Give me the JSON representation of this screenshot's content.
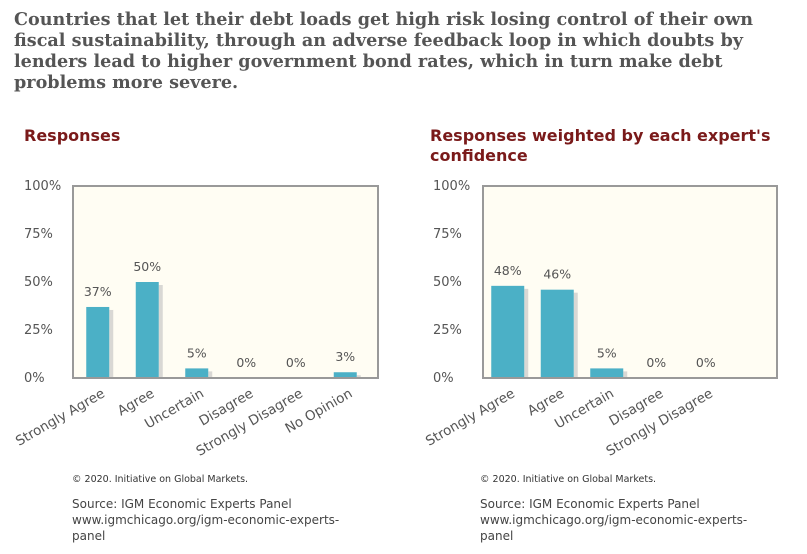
{
  "statement": "Countries that let their debt loads get high risk losing control of their own fiscal sustainability, through an adverse feedback loop in which doubts by lenders lead to higher government bond rates, which in turn make debt problems more severe.",
  "colors": {
    "bar": "#4bb0c6",
    "title": "#7a1a1a",
    "plot_background": "#fffdf3",
    "frame": "#999999"
  },
  "panels": [
    {
      "title": "Responses",
      "copyright": "© 2020. Initiative on Global Markets.",
      "source_label": "Source: IGM Economic Experts Panel",
      "source_url_line1": "www.igmchicago.org/igm-economic-experts-",
      "source_url_line2": "panel"
    },
    {
      "title": "Responses weighted by each expert's confidence",
      "copyright": "© 2020. Initiative on Global Markets.",
      "source_label": "Source: IGM Economic Experts Panel",
      "source_url_line1": "www.igmchicago.org/igm-economic-experts-",
      "source_url_line2": "panel"
    }
  ],
  "chart_data": [
    {
      "type": "bar",
      "title": "Responses",
      "categories": [
        "Strongly Agree",
        "Agree",
        "Uncertain",
        "Disagree",
        "Strongly Disagree",
        "No Opinion"
      ],
      "values": [
        37,
        50,
        5,
        0,
        0,
        3
      ],
      "data_labels": [
        "37%",
        "50%",
        "5%",
        "0%",
        "0%",
        "3%"
      ],
      "ylim": [
        0,
        100
      ],
      "yticks": [
        0,
        25,
        50,
        75,
        100
      ],
      "ytick_labels": [
        "0%",
        "25%",
        "50%",
        "75%",
        "100%"
      ],
      "xlabel": "",
      "ylabel": "",
      "grid": false,
      "legend": "none"
    },
    {
      "type": "bar",
      "title": "Responses weighted by each expert's confidence",
      "categories": [
        "Strongly Agree",
        "Agree",
        "Uncertain",
        "Disagree",
        "Strongly Disagree"
      ],
      "values": [
        48,
        46,
        5,
        0,
        0
      ],
      "data_labels": [
        "48%",
        "46%",
        "5%",
        "0%",
        "0%"
      ],
      "ylim": [
        0,
        100
      ],
      "yticks": [
        0,
        25,
        50,
        75,
        100
      ],
      "ytick_labels": [
        "0%",
        "25%",
        "50%",
        "75%",
        "100%"
      ],
      "xlabel": "",
      "ylabel": "",
      "grid": false,
      "legend": "none"
    }
  ]
}
